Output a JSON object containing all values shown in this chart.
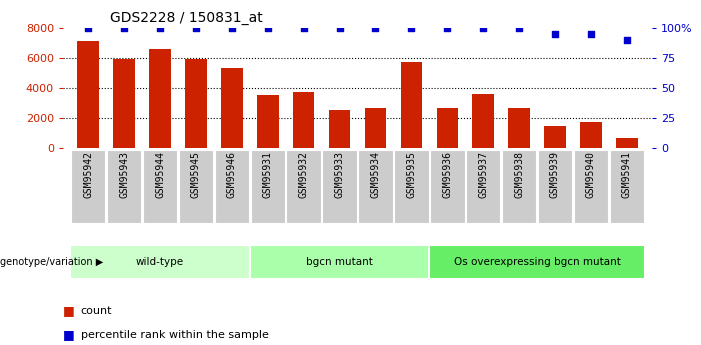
{
  "title": "GDS2228 / 150831_at",
  "samples": [
    "GSM95942",
    "GSM95943",
    "GSM95944",
    "GSM95945",
    "GSM95946",
    "GSM95931",
    "GSM95932",
    "GSM95933",
    "GSM95934",
    "GSM95935",
    "GSM95936",
    "GSM95937",
    "GSM95938",
    "GSM95939",
    "GSM95940",
    "GSM95941"
  ],
  "counts": [
    7100,
    5950,
    6550,
    5900,
    5300,
    3550,
    3750,
    2550,
    2650,
    5750,
    2650,
    3600,
    2650,
    1500,
    1750,
    700
  ],
  "percentile_ranks": [
    100,
    100,
    100,
    100,
    100,
    100,
    100,
    100,
    100,
    100,
    100,
    100,
    100,
    95,
    95,
    90
  ],
  "bar_color": "#cc2200",
  "dot_color": "#0000cc",
  "groups": [
    {
      "label": "wild-type",
      "start": 0,
      "end": 5,
      "color": "#ccffcc"
    },
    {
      "label": "bgcn mutant",
      "start": 5,
      "end": 10,
      "color": "#aaffaa"
    },
    {
      "label": "Os overexpressing bgcn mutant",
      "start": 10,
      "end": 16,
      "color": "#66ee66"
    }
  ],
  "ylim_left": [
    0,
    8000
  ],
  "ylim_right": [
    0,
    100
  ],
  "yticks_left": [
    0,
    2000,
    4000,
    6000,
    8000
  ],
  "yticks_right": [
    0,
    25,
    50,
    75,
    100
  ],
  "ylabel_left_color": "#cc2200",
  "ylabel_right_color": "#0000cc",
  "grid_color": "#000000",
  "background_color": "#ffffff",
  "legend_count_color": "#cc2200",
  "legend_pct_color": "#0000cc",
  "xtick_bg_color": "#cccccc",
  "geno_label": "genotype/variation"
}
